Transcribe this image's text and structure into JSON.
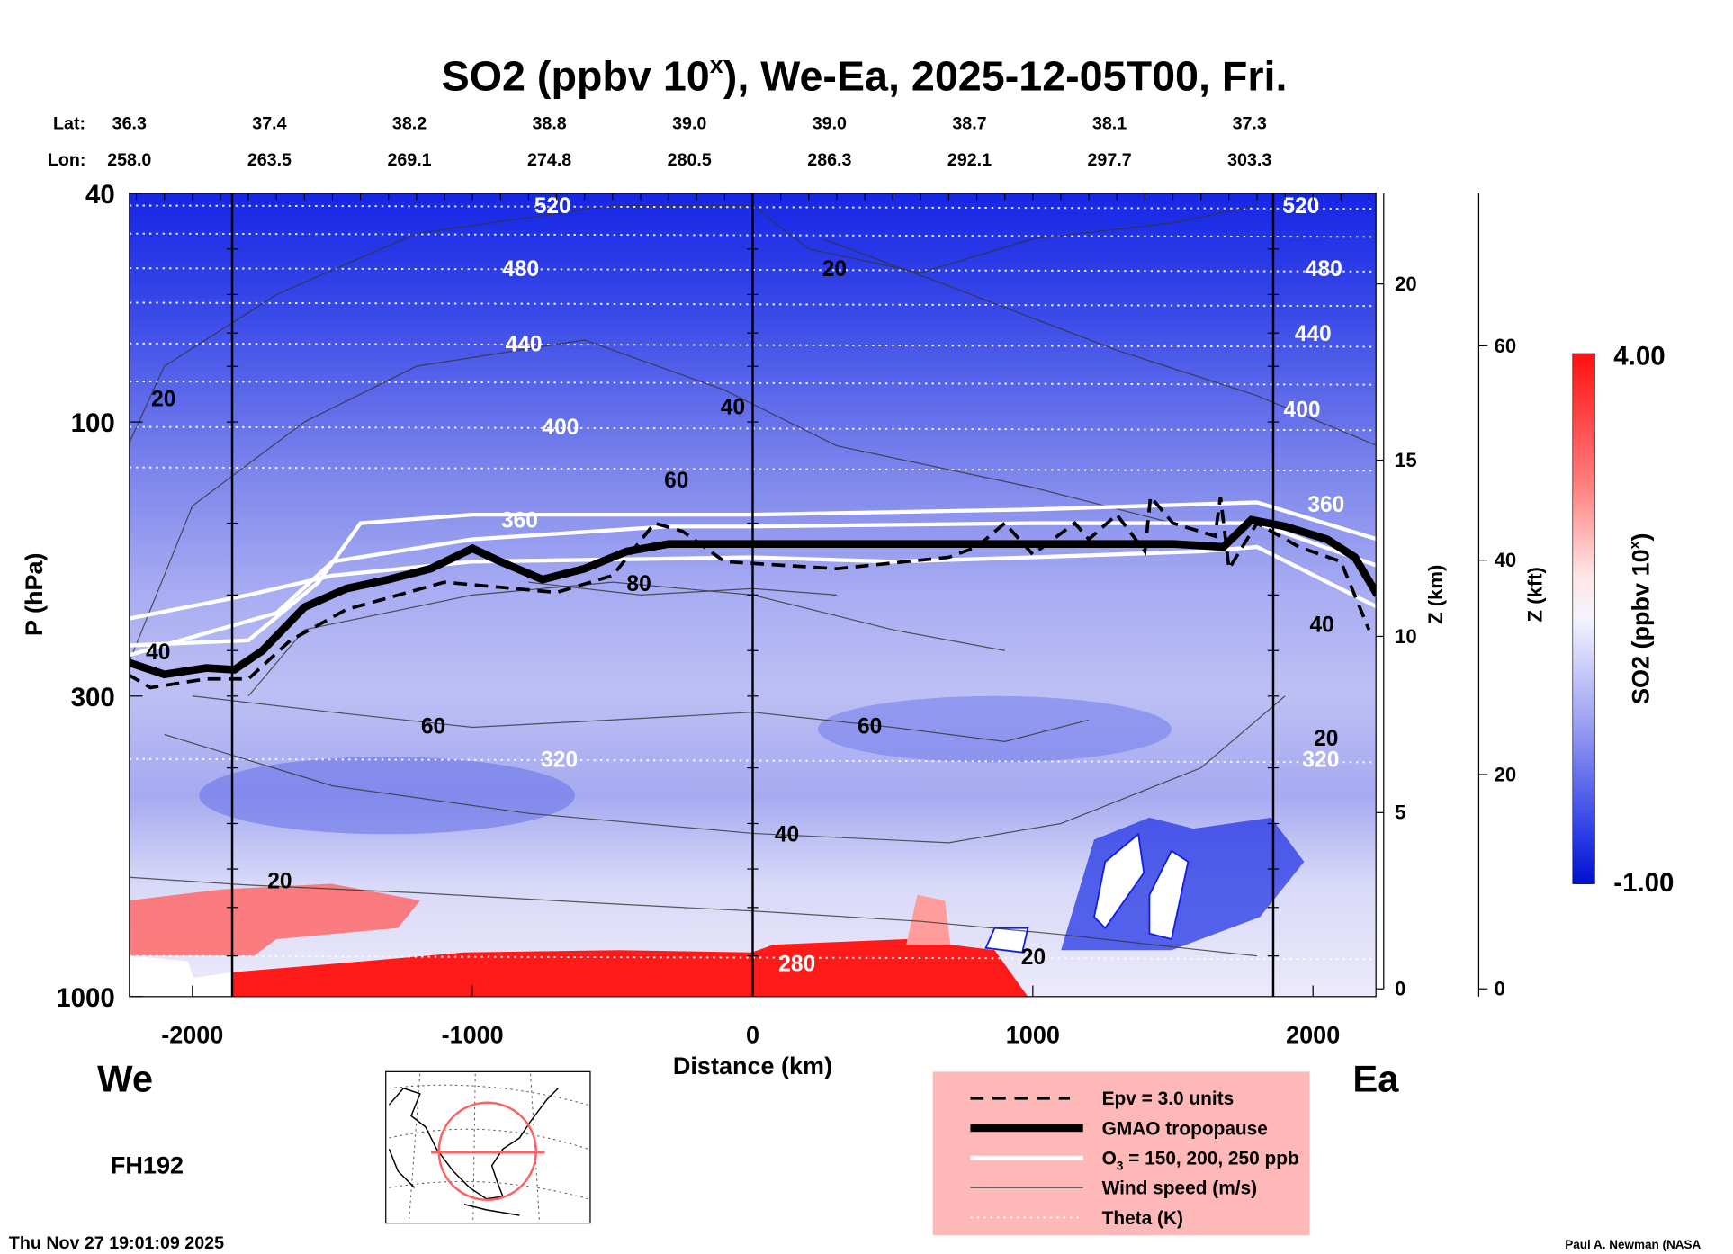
{
  "chart_data": {
    "type": "heatmap",
    "title": "SO2 (ppbv 10",
    "title_sup": "x",
    "title_rest": "), We-Ea, 2025-12-05T00, Fri.",
    "lat_label": "Lat:",
    "lon_label": "Lon:",
    "lat": [
      "36.3",
      "37.4",
      "38.2",
      "38.8",
      "39.0",
      "39.0",
      "38.7",
      "38.1",
      "37.3"
    ],
    "lon": [
      "258.0",
      "263.5",
      "269.1",
      "274.8",
      "280.5",
      "286.3",
      "292.1",
      "297.7",
      "303.3"
    ],
    "xlabel": "Distance (km)",
    "ylabel": "P (hPa)",
    "xlim": [
      -2232,
      2225
    ],
    "ylim": [
      1000,
      40
    ],
    "x_ticks": [
      "-2000",
      "-1000",
      "0",
      "1000",
      "2000"
    ],
    "x_tick_values": [
      -2000,
      -1000,
      0,
      1000,
      2000
    ],
    "y_ticks": [
      "40",
      "100",
      "300",
      "1000"
    ],
    "y_tick_values": [
      40,
      100,
      300,
      1000
    ],
    "z_km_label": "Z (km)",
    "z_km_ticks": [
      "0",
      "5",
      "10",
      "15",
      "20"
    ],
    "z_kft_label": "Z (kft)",
    "z_kft_ticks": [
      "0",
      "20",
      "40",
      "60"
    ],
    "section_lines_km": [
      -1858,
      0,
      1858
    ],
    "left_label": "We",
    "right_label": "Ea",
    "forecast_hour": "FH192",
    "timestamp": "Thu Nov 27 19:01:09 2025",
    "credit": "Paul A. Newman (NASA",
    "colorbar": {
      "label": "SO2 (ppbv 10",
      "label_sup": "x",
      "label_end": ")",
      "max": "4.00",
      "min": "-1.00"
    },
    "legend": [
      {
        "label": "Epv = 3.0 units",
        "style": "dashed"
      },
      {
        "label": "GMAO tropopause",
        "style": "thick"
      },
      {
        "label_pre": "O",
        "label_sub": "3",
        "label": " = 150, 200, 250 ppb",
        "style": "white"
      },
      {
        "label": "Wind speed (m/s)",
        "style": "thin"
      },
      {
        "label": "Theta (K)",
        "style": "dotted"
      }
    ],
    "series": {
      "tropopause": [
        [
          -2230,
          262
        ],
        [
          -2100,
          275
        ],
        [
          -1950,
          268
        ],
        [
          -1850,
          270
        ],
        [
          -1750,
          250
        ],
        [
          -1600,
          210
        ],
        [
          -1450,
          195
        ],
        [
          -1300,
          188
        ],
        [
          -1150,
          180
        ],
        [
          -1000,
          166
        ],
        [
          -900,
          175
        ],
        [
          -750,
          188
        ],
        [
          -600,
          180
        ],
        [
          -450,
          168
        ],
        [
          -300,
          163
        ],
        [
          0,
          163
        ],
        [
          500,
          163
        ],
        [
          1000,
          163
        ],
        [
          1500,
          163
        ],
        [
          1680,
          165
        ],
        [
          1780,
          148
        ],
        [
          1900,
          152
        ],
        [
          2050,
          160
        ],
        [
          2150,
          172
        ],
        [
          2230,
          200
        ]
      ],
      "epv": [
        [
          -2230,
          275
        ],
        [
          -2150,
          290
        ],
        [
          -1950,
          280
        ],
        [
          -1800,
          280
        ],
        [
          -1650,
          240
        ],
        [
          -1450,
          212
        ],
        [
          -1100,
          190
        ],
        [
          -700,
          198
        ],
        [
          -500,
          185
        ],
        [
          -350,
          150
        ],
        [
          -250,
          155
        ],
        [
          -100,
          175
        ],
        [
          300,
          180
        ],
        [
          700,
          172
        ],
        [
          800,
          165
        ],
        [
          900,
          150
        ],
        [
          1000,
          170
        ],
        [
          1150,
          150
        ],
        [
          1200,
          160
        ],
        [
          1300,
          145
        ],
        [
          1400,
          168
        ],
        [
          1420,
          135
        ],
        [
          1500,
          150
        ],
        [
          1650,
          158
        ],
        [
          1670,
          135
        ],
        [
          1700,
          180
        ],
        [
          1800,
          150
        ],
        [
          1950,
          165
        ],
        [
          2100,
          175
        ],
        [
          2200,
          230
        ]
      ],
      "o3": [
        [
          [
            -2230,
            245
          ],
          [
            -1800,
            240
          ],
          [
            -1550,
            190
          ],
          [
            -1400,
            150
          ],
          [
            -1000,
            145
          ],
          [
            0,
            145
          ],
          [
            1000,
            142
          ],
          [
            1800,
            138
          ],
          [
            2230,
            160
          ]
        ],
        [
          [
            -2230,
            255
          ],
          [
            -1700,
            215
          ],
          [
            -1500,
            175
          ],
          [
            -1000,
            160
          ],
          [
            -300,
            152
          ],
          [
            0,
            152
          ],
          [
            1000,
            150
          ],
          [
            1800,
            150
          ],
          [
            2230,
            178
          ]
        ],
        [
          [
            -2230,
            220
          ],
          [
            -1800,
            200
          ],
          [
            -1500,
            185
          ],
          [
            -1000,
            175
          ],
          [
            0,
            172
          ],
          [
            500,
            175
          ],
          [
            1000,
            172
          ],
          [
            1600,
            168
          ],
          [
            1800,
            165
          ],
          [
            2230,
            210
          ]
        ]
      ],
      "wind": [
        [
          [
            -2230,
            110
          ],
          [
            -2100,
            80
          ],
          [
            -1700,
            60
          ],
          [
            -1200,
            47
          ],
          [
            -500,
            42
          ],
          [
            0,
            42
          ],
          [
            200,
            50
          ],
          [
            600,
            55
          ],
          [
            1000,
            48
          ],
          [
            1500,
            45
          ],
          [
            1800,
            42
          ]
        ],
        [
          [
            250,
            48
          ],
          [
            700,
            58
          ],
          [
            1300,
            75
          ],
          [
            1800,
            90
          ],
          [
            2230,
            110
          ]
        ],
        [
          [
            -2230,
            265
          ],
          [
            -2000,
            140
          ],
          [
            -1600,
            100
          ],
          [
            -1200,
            80
          ],
          [
            -600,
            72
          ],
          [
            -100,
            88
          ],
          [
            300,
            110
          ],
          [
            1000,
            130
          ],
          [
            1500,
            150
          ]
        ],
        [
          [
            -1800,
            300
          ],
          [
            -1600,
            230
          ],
          [
            -1000,
            200
          ],
          [
            -500,
            190
          ],
          [
            0,
            200
          ],
          [
            500,
            230
          ],
          [
            900,
            250
          ]
        ],
        [
          [
            -2000,
            300
          ],
          [
            -1500,
            320
          ],
          [
            -1000,
            340
          ],
          [
            -500,
            330
          ],
          [
            0,
            320
          ],
          [
            500,
            340
          ],
          [
            900,
            360
          ],
          [
            1200,
            330
          ]
        ],
        [
          [
            -2100,
            350
          ],
          [
            -1500,
            430
          ],
          [
            -800,
            480
          ],
          [
            0,
            520
          ],
          [
            700,
            540
          ],
          [
            1100,
            500
          ],
          [
            1600,
            400
          ],
          [
            1900,
            300
          ]
        ],
        [
          [
            -2230,
            620
          ],
          [
            -1800,
            640
          ],
          [
            -1200,
            660
          ],
          [
            -500,
            690
          ],
          [
            0,
            710
          ],
          [
            600,
            740
          ],
          [
            1100,
            780
          ],
          [
            1500,
            820
          ],
          [
            1800,
            850
          ]
        ],
        [
          [
            -800,
            190
          ],
          [
            -400,
            200
          ],
          [
            0,
            195
          ],
          [
            300,
            200
          ]
        ]
      ],
      "theta_levels_hpa": [
        42,
        47,
        54,
        62,
        73,
        85,
        102,
        120,
        386,
        850
      ]
    },
    "wind_labels": [
      {
        "text": "20",
        "km": -2103,
        "p": 91
      },
      {
        "text": "20",
        "km": 292,
        "p": 54
      },
      {
        "text": "20",
        "km": -1688,
        "p": 628
      },
      {
        "text": "20",
        "km": 2047,
        "p": 355
      },
      {
        "text": "20",
        "km": 1002,
        "p": 853
      },
      {
        "text": "40",
        "km": -71,
        "p": 94
      },
      {
        "text": "40",
        "km": -2122,
        "p": 251
      },
      {
        "text": "40",
        "km": 122,
        "p": 521
      },
      {
        "text": "40",
        "km": 2032,
        "p": 225
      },
      {
        "text": "60",
        "km": -272,
        "p": 126
      },
      {
        "text": "60",
        "km": -1140,
        "p": 338
      },
      {
        "text": "60",
        "km": 418,
        "p": 338
      },
      {
        "text": "80",
        "km": -406,
        "p": 191
      }
    ],
    "theta_labels": [
      {
        "text": "520",
        "km": -714,
        "p": 42
      },
      {
        "text": "520",
        "km": 1957,
        "p": 42
      },
      {
        "text": "480",
        "km": -828,
        "p": 54
      },
      {
        "text": "480",
        "km": 2039,
        "p": 54
      },
      {
        "text": "440",
        "km": -817,
        "p": 73
      },
      {
        "text": "440",
        "km": 2000,
        "p": 70
      },
      {
        "text": "400",
        "km": -686,
        "p": 102
      },
      {
        "text": "400",
        "km": 1961,
        "p": 95
      },
      {
        "text": "360",
        "km": -832,
        "p": 148
      },
      {
        "text": "360",
        "km": 2047,
        "p": 139
      },
      {
        "text": "320",
        "km": -690,
        "p": 386
      },
      {
        "text": "320",
        "km": 2028,
        "p": 386
      },
      {
        "text": "280",
        "km": 158,
        "p": 875
      }
    ],
    "colors": {
      "red": "#ff1a1a",
      "blue_dark": "#1020e0",
      "blue_light": "#c4c6f4",
      "legend_bg": "#ffb8b8"
    }
  }
}
